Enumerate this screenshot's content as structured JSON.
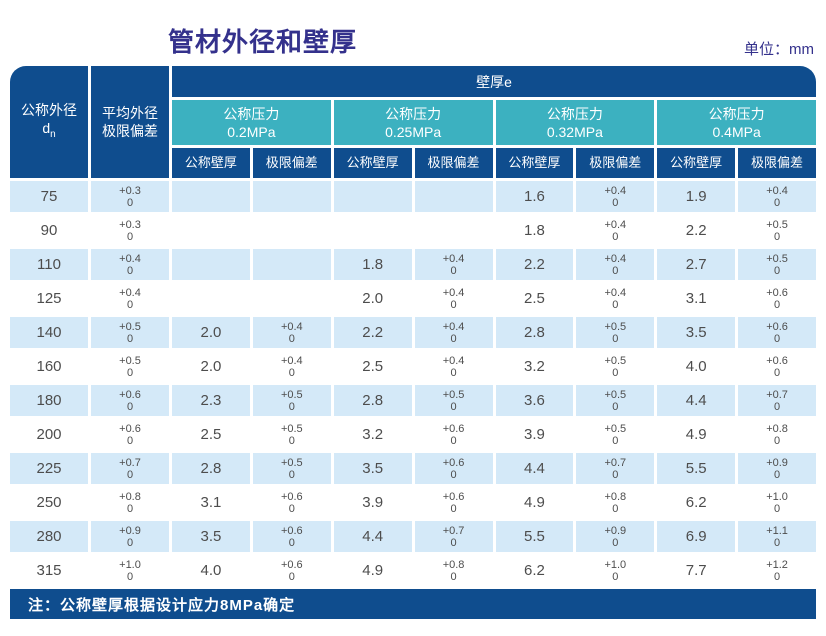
{
  "colors": {
    "navy": "#0f4d8e",
    "teal": "#3cb1c0",
    "rowshade": "#d4e9f8",
    "title": "#34318c",
    "text": "#4d4d4d"
  },
  "page": {
    "title": "管材外径和壁厚",
    "unit_label": "单位：mm"
  },
  "table": {
    "header": {
      "col1_line1": "公称外径",
      "col1_d": "d",
      "col1_sub": "n",
      "col2_line1": "平均外径",
      "col2_line2": "极限偏差",
      "wall_span": "壁厚e",
      "pressure_label": "公称压力",
      "pressures": [
        "0.2MPa",
        "0.25MPa",
        "0.32MPa",
        "0.4MPa"
      ],
      "sub_wall": "公称壁厚",
      "sub_dev": "极限偏差"
    },
    "rows": [
      {
        "dn": "75",
        "avg_plus": "+0.3",
        "avg_zero": "0",
        "groups": [
          {
            "wall": "",
            "dev_plus": "",
            "dev_zero": ""
          },
          {
            "wall": "",
            "dev_plus": "",
            "dev_zero": ""
          },
          {
            "wall": "1.6",
            "dev_plus": "+0.4",
            "dev_zero": "0"
          },
          {
            "wall": "1.9",
            "dev_plus": "+0.4",
            "dev_zero": "0"
          }
        ]
      },
      {
        "dn": "90",
        "avg_plus": "+0.3",
        "avg_zero": "0",
        "groups": [
          {
            "wall": "",
            "dev_plus": "",
            "dev_zero": ""
          },
          {
            "wall": "",
            "dev_plus": "",
            "dev_zero": ""
          },
          {
            "wall": "1.8",
            "dev_plus": "+0.4",
            "dev_zero": "0"
          },
          {
            "wall": "2.2",
            "dev_plus": "+0.5",
            "dev_zero": "0"
          }
        ]
      },
      {
        "dn": "110",
        "avg_plus": "+0.4",
        "avg_zero": "0",
        "groups": [
          {
            "wall": "",
            "dev_plus": "",
            "dev_zero": ""
          },
          {
            "wall": "1.8",
            "dev_plus": "+0.4",
            "dev_zero": "0"
          },
          {
            "wall": "2.2",
            "dev_plus": "+0.4",
            "dev_zero": "0"
          },
          {
            "wall": "2.7",
            "dev_plus": "+0.5",
            "dev_zero": "0"
          }
        ]
      },
      {
        "dn": "125",
        "avg_plus": "+0.4",
        "avg_zero": "0",
        "groups": [
          {
            "wall": "",
            "dev_plus": "",
            "dev_zero": ""
          },
          {
            "wall": "2.0",
            "dev_plus": "+0.4",
            "dev_zero": "0"
          },
          {
            "wall": "2.5",
            "dev_plus": "+0.4",
            "dev_zero": "0"
          },
          {
            "wall": "3.1",
            "dev_plus": "+0.6",
            "dev_zero": "0"
          }
        ]
      },
      {
        "dn": "140",
        "avg_plus": "+0.5",
        "avg_zero": "0",
        "groups": [
          {
            "wall": "2.0",
            "dev_plus": "+0.4",
            "dev_zero": "0"
          },
          {
            "wall": "2.2",
            "dev_plus": "+0.4",
            "dev_zero": "0"
          },
          {
            "wall": "2.8",
            "dev_plus": "+0.5",
            "dev_zero": "0"
          },
          {
            "wall": "3.5",
            "dev_plus": "+0.6",
            "dev_zero": "0"
          }
        ]
      },
      {
        "dn": "160",
        "avg_plus": "+0.5",
        "avg_zero": "0",
        "groups": [
          {
            "wall": "2.0",
            "dev_plus": "+0.4",
            "dev_zero": "0"
          },
          {
            "wall": "2.5",
            "dev_plus": "+0.4",
            "dev_zero": "0"
          },
          {
            "wall": "3.2",
            "dev_plus": "+0.5",
            "dev_zero": "0"
          },
          {
            "wall": "4.0",
            "dev_plus": "+0.6",
            "dev_zero": "0"
          }
        ]
      },
      {
        "dn": "180",
        "avg_plus": "+0.6",
        "avg_zero": "0",
        "groups": [
          {
            "wall": "2.3",
            "dev_plus": "+0.5",
            "dev_zero": "0"
          },
          {
            "wall": "2.8",
            "dev_plus": "+0.5",
            "dev_zero": "0"
          },
          {
            "wall": "3.6",
            "dev_plus": "+0.5",
            "dev_zero": "0"
          },
          {
            "wall": "4.4",
            "dev_plus": "+0.7",
            "dev_zero": "0"
          }
        ]
      },
      {
        "dn": "200",
        "avg_plus": "+0.6",
        "avg_zero": "0",
        "groups": [
          {
            "wall": "2.5",
            "dev_plus": "+0.5",
            "dev_zero": "0"
          },
          {
            "wall": "3.2",
            "dev_plus": "+0.6",
            "dev_zero": "0"
          },
          {
            "wall": "3.9",
            "dev_plus": "+0.5",
            "dev_zero": "0"
          },
          {
            "wall": "4.9",
            "dev_plus": "+0.8",
            "dev_zero": "0"
          }
        ]
      },
      {
        "dn": "225",
        "avg_plus": "+0.7",
        "avg_zero": "0",
        "groups": [
          {
            "wall": "2.8",
            "dev_plus": "+0.5",
            "dev_zero": "0"
          },
          {
            "wall": "3.5",
            "dev_plus": "+0.6",
            "dev_zero": "0"
          },
          {
            "wall": "4.4",
            "dev_plus": "+0.7",
            "dev_zero": "0"
          },
          {
            "wall": "5.5",
            "dev_plus": "+0.9",
            "dev_zero": "0"
          }
        ]
      },
      {
        "dn": "250",
        "avg_plus": "+0.8",
        "avg_zero": "0",
        "groups": [
          {
            "wall": "3.1",
            "dev_plus": "+0.6",
            "dev_zero": "0"
          },
          {
            "wall": "3.9",
            "dev_plus": "+0.6",
            "dev_zero": "0"
          },
          {
            "wall": "4.9",
            "dev_plus": "+0.8",
            "dev_zero": "0"
          },
          {
            "wall": "6.2",
            "dev_plus": "+1.0",
            "dev_zero": "0"
          }
        ]
      },
      {
        "dn": "280",
        "avg_plus": "+0.9",
        "avg_zero": "0",
        "groups": [
          {
            "wall": "3.5",
            "dev_plus": "+0.6",
            "dev_zero": "0"
          },
          {
            "wall": "4.4",
            "dev_plus": "+0.7",
            "dev_zero": "0"
          },
          {
            "wall": "5.5",
            "dev_plus": "+0.9",
            "dev_zero": "0"
          },
          {
            "wall": "6.9",
            "dev_plus": "+1.1",
            "dev_zero": "0"
          }
        ]
      },
      {
        "dn": "315",
        "avg_plus": "+1.0",
        "avg_zero": "0",
        "groups": [
          {
            "wall": "4.0",
            "dev_plus": "+0.6",
            "dev_zero": "0"
          },
          {
            "wall": "4.9",
            "dev_plus": "+0.8",
            "dev_zero": "0"
          },
          {
            "wall": "6.2",
            "dev_plus": "+1.0",
            "dev_zero": "0"
          },
          {
            "wall": "7.7",
            "dev_plus": "+1.2",
            "dev_zero": "0"
          }
        ]
      }
    ],
    "note": "注：公称壁厚根据设计应力8MPa确定"
  }
}
